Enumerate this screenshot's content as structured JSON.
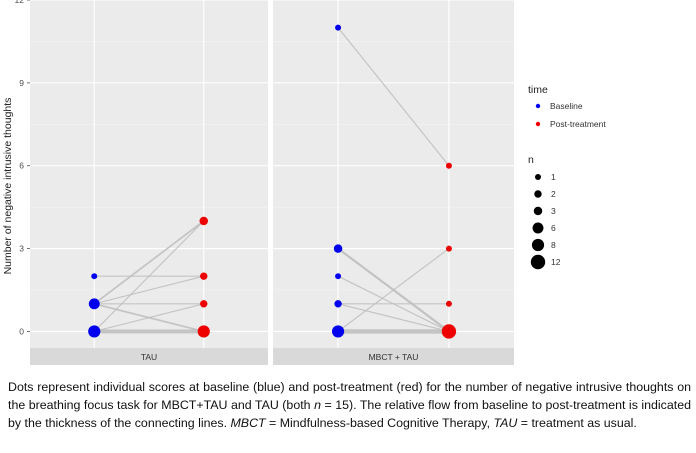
{
  "chart_data": {
    "type": "scatter",
    "ylabel": "Number of negative intrusive thoughts",
    "ylim": [
      -0.6,
      12
    ],
    "y_ticks": [
      0,
      3,
      6,
      9,
      12
    ],
    "x_categories": [
      "Baseline",
      "Post-treatment"
    ],
    "grid": true,
    "legend_position": "right",
    "colors": {
      "Baseline": "#0000ee",
      "Post-treatment": "#ee0000",
      "panel_bg": "#ebebeb",
      "strip_bg": "#d9d9d9",
      "link": "#bfbfbf"
    },
    "legend": {
      "time_title": "time",
      "time_items": [
        "Baseline",
        "Post-treatment"
      ],
      "n_title": "n",
      "n_items": [
        "1",
        "2",
        "3",
        "6",
        "8",
        "12"
      ]
    },
    "panels": [
      {
        "name": "TAU",
        "baseline": [
          {
            "y": 0,
            "n": 8
          },
          {
            "y": 1,
            "n": 6
          },
          {
            "y": 2,
            "n": 1
          }
        ],
        "post": [
          {
            "y": 0,
            "n": 8
          },
          {
            "y": 1,
            "n": 2
          },
          {
            "y": 2,
            "n": 2
          },
          {
            "y": 4,
            "n": 3
          }
        ],
        "links": [
          {
            "from": 0,
            "to": 0,
            "n": 6
          },
          {
            "from": 0,
            "to": 1,
            "n": 1
          },
          {
            "from": 0,
            "to": 4,
            "n": 1
          },
          {
            "from": 1,
            "to": 0,
            "n": 2
          },
          {
            "from": 1,
            "to": 1,
            "n": 1
          },
          {
            "from": 1,
            "to": 2,
            "n": 1
          },
          {
            "from": 1,
            "to": 4,
            "n": 2
          },
          {
            "from": 2,
            "to": 2,
            "n": 1
          }
        ]
      },
      {
        "name": "MBCT + TAU",
        "baseline": [
          {
            "y": 0,
            "n": 8
          },
          {
            "y": 1,
            "n": 2
          },
          {
            "y": 2,
            "n": 1
          },
          {
            "y": 3,
            "n": 3
          },
          {
            "y": 11,
            "n": 1
          }
        ],
        "post": [
          {
            "y": 0,
            "n": 12
          },
          {
            "y": 1,
            "n": 1
          },
          {
            "y": 3,
            "n": 1
          },
          {
            "y": 6,
            "n": 1
          }
        ],
        "links": [
          {
            "from": 0,
            "to": 0,
            "n": 7
          },
          {
            "from": 0,
            "to": 3,
            "n": 1
          },
          {
            "from": 1,
            "to": 0,
            "n": 1
          },
          {
            "from": 1,
            "to": 1,
            "n": 1
          },
          {
            "from": 2,
            "to": 0,
            "n": 1
          },
          {
            "from": 3,
            "to": 0,
            "n": 3
          },
          {
            "from": 11,
            "to": 6,
            "n": 1
          }
        ]
      }
    ]
  },
  "caption": {
    "p1": "Dots represent individual scores at baseline (blue) and post-treatment (red) for the number of negative intrusive thoughts on the breathing focus task for MBCT+TAU and TAU (both ",
    "n_italic": "n",
    "p2": " = 15). The relative flow from baseline to post-treatment is indicated by the thickness of the connecting lines. ",
    "mbct_italic": "MBCT",
    "p3": " = Mindfulness-based Cognitive Therapy, ",
    "tau_italic": "TAU",
    "p4": " = treatment as usual."
  }
}
